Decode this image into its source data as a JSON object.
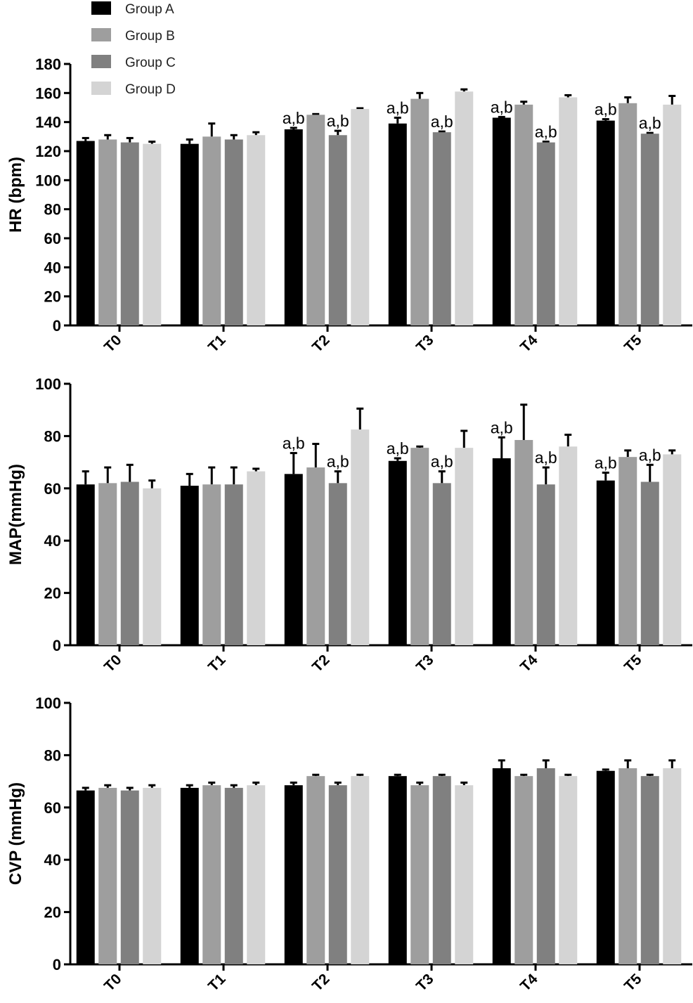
{
  "legend": [
    {
      "name": "Group A",
      "color": "#000000"
    },
    {
      "name": "Group B",
      "color": "#9e9e9e"
    },
    {
      "name": "Group C",
      "color": "#808080"
    },
    {
      "name": "Group D",
      "color": "#d4d4d4"
    }
  ],
  "chart_data": [
    {
      "type": "bar",
      "title": "",
      "xlabel": "",
      "ylabel": "HR (bpm)",
      "ylim": [
        0,
        180
      ],
      "yticks": [
        0,
        20,
        40,
        60,
        80,
        100,
        120,
        140,
        160,
        180
      ],
      "categories": [
        "T0",
        "T1",
        "T2",
        "T3",
        "T4",
        "T5"
      ],
      "series": [
        {
          "name": "Group A",
          "values": [
            127,
            125,
            135,
            139,
            143,
            141
          ],
          "errors": [
            2,
            3,
            1,
            4,
            0.5,
            1
          ]
        },
        {
          "name": "Group B",
          "values": [
            128,
            130,
            145,
            156,
            152,
            153
          ],
          "errors": [
            3,
            9,
            0.5,
            4,
            2,
            4
          ]
        },
        {
          "name": "Group C",
          "values": [
            126,
            128,
            131,
            133,
            126,
            132
          ],
          "errors": [
            3,
            3,
            3,
            0.5,
            0.5,
            0.5
          ]
        },
        {
          "name": "Group D",
          "values": [
            125,
            131,
            149,
            161,
            157,
            152
          ],
          "errors": [
            1.5,
            2,
            0.5,
            1.5,
            1.5,
            6
          ]
        }
      ],
      "annotations": [
        {
          "category": "T2",
          "series": "Group A",
          "text": "a,b"
        },
        {
          "category": "T2",
          "series": "Group C",
          "text": "a,b"
        },
        {
          "category": "T3",
          "series": "Group A",
          "text": "a,b"
        },
        {
          "category": "T3",
          "series": "Group C",
          "text": "a,b"
        },
        {
          "category": "T4",
          "series": "Group A",
          "text": "a,b"
        },
        {
          "category": "T4",
          "series": "Group C",
          "text": "a,b"
        },
        {
          "category": "T5",
          "series": "Group A",
          "text": "a,b"
        },
        {
          "category": "T5",
          "series": "Group C",
          "text": "a,b"
        }
      ],
      "grid": false,
      "legend": "top-left"
    },
    {
      "type": "bar",
      "title": "",
      "xlabel": "",
      "ylabel": "MAP(mmHg)",
      "ylim": [
        0,
        100
      ],
      "yticks": [
        0,
        20,
        40,
        60,
        80,
        100
      ],
      "categories": [
        "T0",
        "T1",
        "T2",
        "T3",
        "T4",
        "T5"
      ],
      "series": [
        {
          "name": "Group A",
          "values": [
            61.5,
            61,
            65.5,
            70.5,
            71.5,
            63
          ],
          "errors": [
            5,
            4.5,
            8,
            1,
            8,
            3
          ]
        },
        {
          "name": "Group B",
          "values": [
            62,
            61.5,
            68,
            75.5,
            78.5,
            72
          ],
          "errors": [
            6,
            6.5,
            9,
            0.5,
            13.5,
            2.5
          ]
        },
        {
          "name": "Group C",
          "values": [
            62.5,
            61.5,
            62,
            62,
            61.5,
            62.5
          ],
          "errors": [
            6.5,
            6.5,
            4.5,
            4.5,
            6.5,
            6.5
          ]
        },
        {
          "name": "Group D",
          "values": [
            60,
            66.5,
            82.5,
            75.5,
            76,
            73
          ],
          "errors": [
            3,
            1,
            8,
            6.5,
            4.5,
            1.5
          ]
        }
      ],
      "annotations": [
        {
          "category": "T2",
          "series": "Group A",
          "text": "a,b"
        },
        {
          "category": "T2",
          "series": "Group C",
          "text": "a,b"
        },
        {
          "category": "T3",
          "series": "Group A",
          "text": "a,b"
        },
        {
          "category": "T3",
          "series": "Group C",
          "text": "a,b"
        },
        {
          "category": "T4",
          "series": "Group A",
          "text": "a,b"
        },
        {
          "category": "T4",
          "series": "Group C",
          "text": "a,b"
        },
        {
          "category": "T5",
          "series": "Group A",
          "text": "a,b"
        },
        {
          "category": "T5",
          "series": "Group C",
          "text": "a,b"
        }
      ],
      "grid": false
    },
    {
      "type": "bar",
      "title": "",
      "xlabel": "",
      "ylabel": "CVP (mmHg)",
      "ylim": [
        0,
        100
      ],
      "yticks": [
        0,
        20,
        40,
        60,
        80,
        100
      ],
      "categories": [
        "T0",
        "T1",
        "T2",
        "T3",
        "T4",
        "T5"
      ],
      "series": [
        {
          "name": "Group A",
          "values": [
            66.5,
            67.5,
            68.5,
            72,
            75,
            74
          ],
          "errors": [
            1,
            1,
            1,
            0.5,
            3,
            0.5
          ]
        },
        {
          "name": "Group B",
          "values": [
            67.5,
            68.5,
            72,
            68.5,
            72,
            75
          ],
          "errors": [
            1,
            1,
            0.5,
            1,
            0.5,
            3
          ]
        },
        {
          "name": "Group C",
          "values": [
            66.5,
            67.5,
            68.5,
            72,
            75,
            72
          ],
          "errors": [
            1,
            1,
            1,
            0.5,
            3,
            0.5
          ]
        },
        {
          "name": "Group D",
          "values": [
            67.5,
            68.5,
            72,
            68.5,
            72,
            75
          ],
          "errors": [
            1,
            1,
            0.5,
            1,
            0.5,
            3
          ]
        }
      ],
      "annotations": [],
      "grid": false
    }
  ]
}
